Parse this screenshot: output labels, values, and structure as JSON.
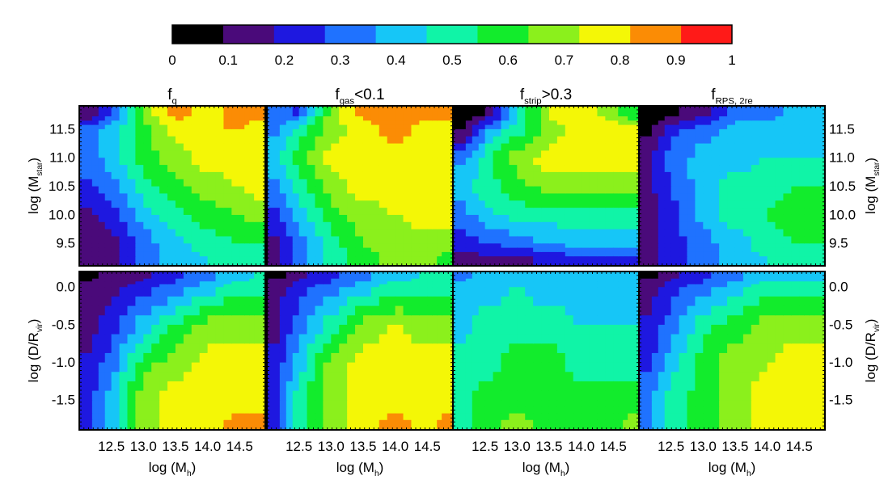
{
  "colorbar": {
    "ticks": [
      "0",
      "0.1",
      "0.2",
      "0.3",
      "0.4",
      "0.5",
      "0.6",
      "0.7",
      "0.8",
      "0.9",
      "1"
    ],
    "colors": [
      "#000000",
      "#4a0a7a",
      "#1e18e0",
      "#1f72ff",
      "#16c6f7",
      "#10f4a7",
      "#12ec2c",
      "#8bf01c",
      "#f4f706",
      "#fb8c05",
      "#ff1a18"
    ]
  },
  "titles": [
    {
      "main": "f",
      "sub": "q",
      "tail": ""
    },
    {
      "main": "f",
      "sub": "gas",
      "tail": "<0.1"
    },
    {
      "main": "f",
      "sub": "strip",
      "tail": ">0.3"
    },
    {
      "main": "f",
      "sub": "RPS, 2re",
      "tail": ""
    }
  ],
  "xaxis": {
    "label_main": "log (M",
    "label_sub": "h",
    "label_tail": ")",
    "ticks": [
      "12.5",
      "13.0",
      "13.5",
      "14.0",
      "14.5"
    ]
  },
  "row_top": {
    "label_main": "log (M",
    "label_sub": "star",
    "label_tail": ")",
    "ticks": [
      "11.5",
      "11.0",
      "10.5",
      "10.0",
      "9.5"
    ]
  },
  "row_bottom": {
    "label_main": "log (D/R",
    "label_sub": "vir",
    "label_tail": ")",
    "ticks": [
      "0.0",
      "-0.5",
      "-1.0",
      "-1.5"
    ]
  },
  "chart_data": [
    {
      "type": "heatmap",
      "title": "f_q",
      "xlabel": "log (M_h)",
      "ylabel": "log (M_star)",
      "xlim": [
        12.0,
        14.9
      ],
      "ylim": [
        9.1,
        11.9
      ],
      "grid_x": [
        12.1,
        12.5,
        13.0,
        13.5,
        14.0,
        14.5,
        14.8
      ],
      "grid_y": [
        9.2,
        9.5,
        10.0,
        10.5,
        11.0,
        11.5,
        11.8
      ],
      "z": [
        [
          0.15,
          0.15,
          0.35,
          0.45,
          0.5,
          0.55,
          0.55
        ],
        [
          0.15,
          0.15,
          0.35,
          0.45,
          0.55,
          0.6,
          0.6
        ],
        [
          0.15,
          0.25,
          0.45,
          0.55,
          0.65,
          0.7,
          0.75
        ],
        [
          0.25,
          0.35,
          0.55,
          0.65,
          0.75,
          0.8,
          0.85
        ],
        [
          0.35,
          0.45,
          0.65,
          0.75,
          0.85,
          0.85,
          0.85
        ],
        [
          0.35,
          0.45,
          0.65,
          0.85,
          0.9,
          0.9,
          0.85
        ],
        [
          0.05,
          0.25,
          0.75,
          0.95,
          0.85,
          0.95,
          0.95
        ]
      ]
    },
    {
      "type": "heatmap",
      "title": "f_gas<0.1",
      "xlabel": "log (M_h)",
      "ylabel": "log (M_star)",
      "xlim": [
        12.0,
        14.9
      ],
      "ylim": [
        9.1,
        11.9
      ],
      "grid_x": [
        12.1,
        12.5,
        13.0,
        13.5,
        14.0,
        14.5,
        14.8
      ],
      "grid_y": [
        9.2,
        9.5,
        10.0,
        10.5,
        11.0,
        11.5,
        11.8
      ],
      "z": [
        [
          0.15,
          0.35,
          0.55,
          0.65,
          0.75,
          0.75,
          0.65
        ],
        [
          0.15,
          0.35,
          0.55,
          0.7,
          0.75,
          0.75,
          0.75
        ],
        [
          0.25,
          0.45,
          0.65,
          0.75,
          0.8,
          0.85,
          0.85
        ],
        [
          0.35,
          0.55,
          0.75,
          0.85,
          0.85,
          0.85,
          0.85
        ],
        [
          0.45,
          0.65,
          0.85,
          0.85,
          0.85,
          0.85,
          0.85
        ],
        [
          0.35,
          0.55,
          0.75,
          0.85,
          0.95,
          0.85,
          0.85
        ],
        [
          0.35,
          0.25,
          0.75,
          0.95,
          0.95,
          0.95,
          0.95
        ]
      ]
    },
    {
      "type": "heatmap",
      "title": "f_strip>0.3",
      "xlabel": "log (M_h)",
      "ylabel": "log (M_star)",
      "xlim": [
        12.0,
        14.9
      ],
      "ylim": [
        9.1,
        11.9
      ],
      "grid_x": [
        12.1,
        12.5,
        13.0,
        13.5,
        14.0,
        14.5,
        14.8
      ],
      "grid_y": [
        9.2,
        9.5,
        10.0,
        10.5,
        11.0,
        11.5,
        11.8
      ],
      "z": [
        [
          0.15,
          0.15,
          0.15,
          0.2,
          0.25,
          0.25,
          0.25
        ],
        [
          0.25,
          0.3,
          0.35,
          0.4,
          0.45,
          0.45,
          0.45
        ],
        [
          0.35,
          0.45,
          0.55,
          0.55,
          0.55,
          0.55,
          0.55
        ],
        [
          0.45,
          0.55,
          0.65,
          0.75,
          0.75,
          0.75,
          0.75
        ],
        [
          0.35,
          0.55,
          0.75,
          0.85,
          0.85,
          0.85,
          0.85
        ],
        [
          0.05,
          0.35,
          0.55,
          0.75,
          0.85,
          0.85,
          0.85
        ],
        [
          0.05,
          0.05,
          0.45,
          0.85,
          0.85,
          0.75,
          0.55
        ]
      ]
    },
    {
      "type": "heatmap",
      "title": "f_RPS, 2re",
      "xlabel": "log (M_h)",
      "ylabel": "log (M_star)",
      "xlim": [
        12.0,
        14.9
      ],
      "ylim": [
        9.1,
        11.9
      ],
      "grid_x": [
        12.1,
        12.5,
        13.0,
        13.5,
        14.0,
        14.5,
        14.8
      ],
      "grid_y": [
        9.2,
        9.5,
        10.0,
        10.5,
        11.0,
        11.5,
        11.8
      ],
      "z": [
        [
          0.15,
          0.25,
          0.35,
          0.45,
          0.5,
          0.55,
          0.55
        ],
        [
          0.15,
          0.25,
          0.35,
          0.45,
          0.55,
          0.6,
          0.6
        ],
        [
          0.15,
          0.25,
          0.45,
          0.55,
          0.6,
          0.65,
          0.65
        ],
        [
          0.15,
          0.3,
          0.45,
          0.55,
          0.55,
          0.6,
          0.6
        ],
        [
          0.15,
          0.35,
          0.45,
          0.45,
          0.5,
          0.5,
          0.5
        ],
        [
          0.05,
          0.25,
          0.35,
          0.45,
          0.45,
          0.5,
          0.45
        ],
        [
          0.05,
          0.05,
          0.15,
          0.35,
          0.35,
          0.45,
          0.45
        ]
      ]
    },
    {
      "type": "heatmap",
      "title": "f_q",
      "xlabel": "log (M_h)",
      "ylabel": "log (D/R_vir)",
      "xlim": [
        12.0,
        14.9
      ],
      "ylim": [
        -1.9,
        0.2
      ],
      "grid_x": [
        12.1,
        12.5,
        13.0,
        13.5,
        14.0,
        14.5,
        14.8
      ],
      "grid_y": [
        -1.85,
        -1.5,
        -1.0,
        -0.5,
        0.0,
        0.15
      ],
      "z": [
        [
          0.25,
          0.45,
          0.75,
          0.85,
          0.85,
          0.95,
          0.95
        ],
        [
          0.25,
          0.45,
          0.75,
          0.85,
          0.85,
          0.85,
          0.85
        ],
        [
          0.2,
          0.35,
          0.65,
          0.75,
          0.85,
          0.85,
          0.85
        ],
        [
          0.15,
          0.25,
          0.45,
          0.6,
          0.75,
          0.75,
          0.75
        ],
        [
          0.15,
          0.15,
          0.25,
          0.35,
          0.45,
          0.55,
          0.55
        ],
        [
          0.05,
          0.15,
          0.15,
          0.25,
          0.35,
          0.45,
          0.5
        ]
      ]
    },
    {
      "type": "heatmap",
      "title": "f_gas<0.1",
      "xlabel": "log (M_h)",
      "ylabel": "log (D/R_vir)",
      "xlim": [
        12.0,
        14.9
      ],
      "ylim": [
        -1.9,
        0.2
      ],
      "grid_x": [
        12.1,
        12.5,
        13.0,
        13.5,
        14.0,
        14.5,
        14.8
      ],
      "grid_y": [
        -1.85,
        -1.5,
        -1.0,
        -0.5,
        0.0,
        0.15
      ],
      "z": [
        [
          0.25,
          0.55,
          0.75,
          0.85,
          0.95,
          0.85,
          0.95
        ],
        [
          0.25,
          0.55,
          0.75,
          0.85,
          0.85,
          0.85,
          0.85
        ],
        [
          0.2,
          0.45,
          0.75,
          0.85,
          0.85,
          0.85,
          0.85
        ],
        [
          0.15,
          0.35,
          0.55,
          0.75,
          0.8,
          0.75,
          0.75
        ],
        [
          0.15,
          0.25,
          0.35,
          0.45,
          0.55,
          0.55,
          0.55
        ],
        [
          0.05,
          0.15,
          0.25,
          0.35,
          0.45,
          0.5,
          0.5
        ]
      ]
    },
    {
      "type": "heatmap",
      "title": "f_strip>0.3",
      "xlabel": "log (M_h)",
      "ylabel": "log (D/R_vir)",
      "xlim": [
        12.0,
        14.9
      ],
      "ylim": [
        -1.9,
        0.2
      ],
      "grid_x": [
        12.1,
        12.5,
        13.0,
        13.5,
        14.0,
        14.5,
        14.8
      ],
      "grid_y": [
        -1.85,
        -1.5,
        -1.0,
        -0.5,
        0.0,
        0.15
      ],
      "z": [
        [
          0.55,
          0.65,
          0.75,
          0.65,
          0.65,
          0.65,
          0.75
        ],
        [
          0.55,
          0.65,
          0.65,
          0.65,
          0.65,
          0.65,
          0.65
        ],
        [
          0.55,
          0.55,
          0.65,
          0.65,
          0.55,
          0.55,
          0.55
        ],
        [
          0.45,
          0.55,
          0.55,
          0.55,
          0.5,
          0.5,
          0.5
        ],
        [
          0.45,
          0.45,
          0.5,
          0.45,
          0.45,
          0.45,
          0.45
        ],
        [
          0.35,
          0.45,
          0.45,
          0.45,
          0.45,
          0.45,
          0.45
        ]
      ]
    },
    {
      "type": "heatmap",
      "title": "f_RPS, 2re",
      "xlabel": "log (M_h)",
      "ylabel": "log (D/R_vir)",
      "xlim": [
        12.0,
        14.9
      ],
      "ylim": [
        -1.9,
        0.2
      ],
      "grid_x": [
        12.1,
        12.5,
        13.0,
        13.5,
        14.0,
        14.5,
        14.8
      ],
      "grid_y": [
        -1.85,
        -1.5,
        -1.0,
        -0.5,
        0.0,
        0.15
      ],
      "z": [
        [
          0.35,
          0.55,
          0.65,
          0.75,
          0.85,
          0.85,
          0.85
        ],
        [
          0.35,
          0.55,
          0.65,
          0.75,
          0.85,
          0.85,
          0.85
        ],
        [
          0.25,
          0.45,
          0.65,
          0.75,
          0.8,
          0.85,
          0.85
        ],
        [
          0.2,
          0.35,
          0.55,
          0.65,
          0.75,
          0.75,
          0.75
        ],
        [
          0.15,
          0.25,
          0.35,
          0.45,
          0.55,
          0.55,
          0.55
        ],
        [
          0.05,
          0.15,
          0.25,
          0.35,
          0.45,
          0.45,
          0.45
        ]
      ]
    }
  ]
}
